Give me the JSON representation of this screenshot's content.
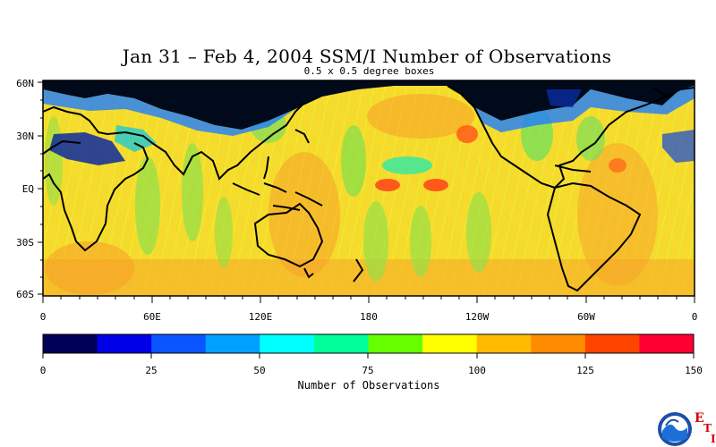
{
  "title": "Jan 31 – Feb 4, 2004 SSM/I Number of Observations",
  "subtitle": "0.5 x 0.5 degree boxes",
  "lat_labels": [
    "60N",
    "30N",
    "EQ",
    "30S",
    "60S"
  ],
  "lon_labels": [
    "0",
    "60E",
    "120E",
    "180",
    "120W",
    "60W",
    "0"
  ],
  "colorbar": {
    "title": "Number of Observations",
    "labels": [
      "0",
      "25",
      "50",
      "75",
      "100",
      "125",
      "150"
    ],
    "colors": [
      "#000058",
      "#0000e6",
      "#0a55ff",
      "#00a0ff",
      "#00ffff",
      "#00ff99",
      "#66ff00",
      "#ffff00",
      "#ffbb00",
      "#ff8c00",
      "#ff4400",
      "#ff0033"
    ],
    "range": [
      0,
      150
    ]
  },
  "logo": {
    "name": "noaa-logo",
    "letters": [
      "E",
      "T",
      "I"
    ]
  }
}
